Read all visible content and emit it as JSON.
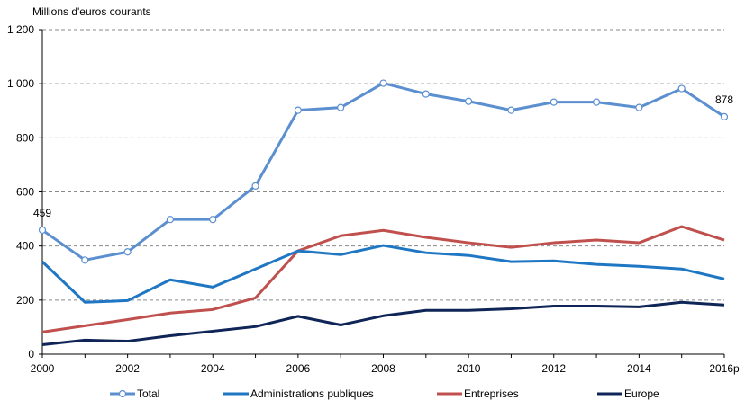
{
  "chart_data": {
    "type": "line",
    "ylabel": "Millions d'euros  courants",
    "x": [
      "2000",
      "2001",
      "2002",
      "2003",
      "2004",
      "2005",
      "2006",
      "2007",
      "2008",
      "2009",
      "2010",
      "2011",
      "2012",
      "2013",
      "2014",
      "2015",
      "2016p"
    ],
    "x_tick_labels": [
      "2000",
      "2002",
      "2004",
      "2006",
      "2008",
      "2010",
      "2012",
      "2014",
      "2016p"
    ],
    "ylim": [
      0,
      1200
    ],
    "y_ticks": [
      0,
      200,
      400,
      600,
      800,
      1000,
      1200
    ],
    "y_tick_labels": [
      "0",
      "200",
      "400",
      "600",
      "800",
      "1 000",
      "1 200"
    ],
    "grid": "horizontal-dashed",
    "legend_position": "bottom",
    "series": [
      {
        "name": "Total",
        "color": "#5b8fd0",
        "markers": true,
        "values": [
          459,
          348,
          378,
          498,
          498,
          622,
          902,
          912,
          1002,
          962,
          935,
          902,
          932,
          932,
          912,
          982,
          878
        ]
      },
      {
        "name": "Administrations publiques",
        "color": "#1f77c4",
        "markers": false,
        "values": [
          342,
          192,
          198,
          275,
          248,
          315,
          382,
          368,
          402,
          375,
          365,
          342,
          345,
          332,
          325,
          315,
          278
        ]
      },
      {
        "name": "Entreprises",
        "color": "#c0504d",
        "markers": false,
        "values": [
          82,
          105,
          128,
          152,
          165,
          208,
          382,
          438,
          458,
          432,
          412,
          395,
          412,
          422,
          412,
          472,
          422
        ]
      },
      {
        "name": "Europe",
        "color": "#0f2557",
        "markers": false,
        "values": [
          35,
          52,
          48,
          68,
          85,
          102,
          140,
          108,
          142,
          162,
          162,
          168,
          178,
          178,
          175,
          192,
          182
        ]
      }
    ],
    "annotations": [
      {
        "series": "Total",
        "index": 0,
        "text": "459"
      },
      {
        "series": "Total",
        "index": 16,
        "text": "878"
      }
    ]
  }
}
